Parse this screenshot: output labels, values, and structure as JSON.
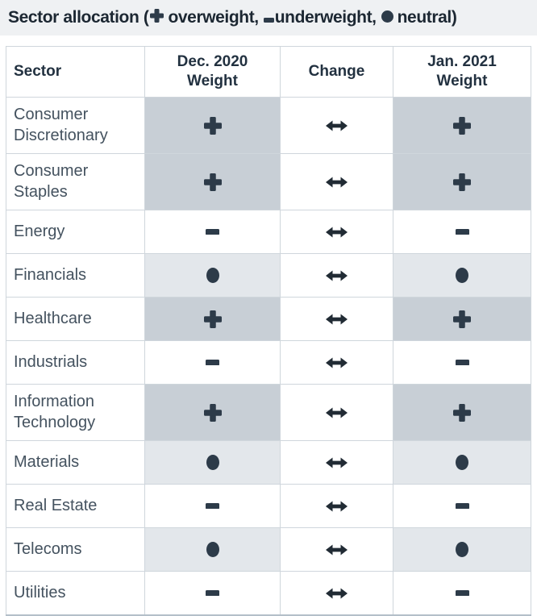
{
  "title": {
    "prefix": "Sector allocation (",
    "legend": [
      {
        "symbol": "plus",
        "meaning": "overweight",
        "text": "overweight,"
      },
      {
        "symbol": "minus",
        "meaning": "underweight",
        "text": "underweight,"
      },
      {
        "symbol": "circle",
        "meaning": "neutral",
        "text": "neutral)"
      }
    ]
  },
  "colors": {
    "title_bar_bg": "#eff1f3",
    "title_text": "#1c2732",
    "overweight_cell_bg": "#c8cfd6",
    "neutral_cell_bg": "#e3e7eb",
    "underweight_cell_bg": "#ffffff",
    "symbol": "#2d3b49",
    "arrow": "#212b34",
    "border": "#cfd6dc"
  },
  "table": {
    "headers": [
      {
        "lines": [
          "Sector"
        ]
      },
      {
        "lines": [
          "Dec. 2020",
          "Weight"
        ]
      },
      {
        "lines": [
          "Change"
        ]
      },
      {
        "lines": [
          "Jan. 2021",
          "Weight"
        ]
      }
    ],
    "symbols": {
      "overweight": "plus",
      "underweight": "minus",
      "neutral": "circle",
      "unchanged": "left-right-arrow"
    },
    "rows": [
      {
        "sector": "Consumer Discretionary",
        "dec_2020": "overweight",
        "change": "unchanged",
        "jan_2021": "overweight",
        "two_line": true
      },
      {
        "sector": "Consumer Staples",
        "dec_2020": "overweight",
        "change": "unchanged",
        "jan_2021": "overweight",
        "two_line": true
      },
      {
        "sector": "Energy",
        "dec_2020": "underweight",
        "change": "unchanged",
        "jan_2021": "underweight",
        "two_line": false
      },
      {
        "sector": "Financials",
        "dec_2020": "neutral",
        "change": "unchanged",
        "jan_2021": "neutral",
        "two_line": false
      },
      {
        "sector": "Healthcare",
        "dec_2020": "overweight",
        "change": "unchanged",
        "jan_2021": "overweight",
        "two_line": false
      },
      {
        "sector": "Industrials",
        "dec_2020": "underweight",
        "change": "unchanged",
        "jan_2021": "underweight",
        "two_line": false
      },
      {
        "sector": "Information Technology",
        "dec_2020": "overweight",
        "change": "unchanged",
        "jan_2021": "overweight",
        "two_line": true
      },
      {
        "sector": "Materials",
        "dec_2020": "neutral",
        "change": "unchanged",
        "jan_2021": "neutral",
        "two_line": false
      },
      {
        "sector": "Real Estate",
        "dec_2020": "underweight",
        "change": "unchanged",
        "jan_2021": "underweight",
        "two_line": false
      },
      {
        "sector": "Telecoms",
        "dec_2020": "neutral",
        "change": "unchanged",
        "jan_2021": "neutral",
        "two_line": false
      },
      {
        "sector": "Utilities",
        "dec_2020": "underweight",
        "change": "unchanged",
        "jan_2021": "underweight",
        "two_line": false
      }
    ]
  },
  "chart_data": {
    "type": "table",
    "title": "Sector allocation (+ overweight, - underweight, neutral)",
    "columns": [
      "Sector",
      "Dec. 2020 Weight",
      "Change",
      "Jan. 2021 Weight"
    ],
    "rows": [
      [
        "Consumer Discretionary",
        "overweight",
        "unchanged",
        "overweight"
      ],
      [
        "Consumer Staples",
        "overweight",
        "unchanged",
        "overweight"
      ],
      [
        "Energy",
        "underweight",
        "unchanged",
        "underweight"
      ],
      [
        "Financials",
        "neutral",
        "unchanged",
        "neutral"
      ],
      [
        "Healthcare",
        "overweight",
        "unchanged",
        "overweight"
      ],
      [
        "Industrials",
        "underweight",
        "unchanged",
        "underweight"
      ],
      [
        "Information Technology",
        "overweight",
        "unchanged",
        "overweight"
      ],
      [
        "Materials",
        "neutral",
        "unchanged",
        "neutral"
      ],
      [
        "Real Estate",
        "underweight",
        "unchanged",
        "underweight"
      ],
      [
        "Telecoms",
        "neutral",
        "unchanged",
        "neutral"
      ],
      [
        "Utilities",
        "underweight",
        "unchanged",
        "underweight"
      ]
    ]
  }
}
